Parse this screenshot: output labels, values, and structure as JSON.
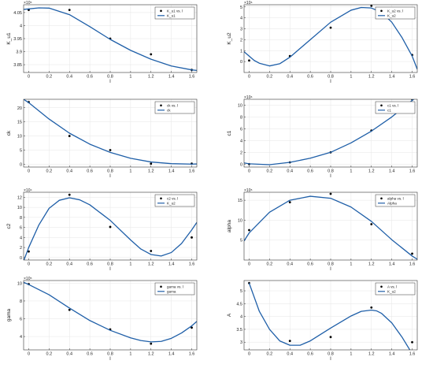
{
  "chart_data": [
    {
      "type": "scatter",
      "xlabel": "l",
      "ylabel": "K_u1",
      "xlim": [
        -0.05,
        1.65
      ],
      "ylim": [
        3.82,
        4.08
      ],
      "y_exponent": "×10⁵",
      "xticks": [
        "0",
        "0.2",
        "0.4",
        "0.6",
        "0.8",
        "1",
        "1.2",
        "1.4",
        "1.6"
      ],
      "yticks": [
        {
          "v": 3.85,
          "label": "3.85"
        },
        {
          "v": 3.9,
          "label": "3.9"
        },
        {
          "v": 3.95,
          "label": "3.95"
        },
        {
          "v": 4.0,
          "label": "4"
        },
        {
          "v": 4.05,
          "label": "4.05"
        }
      ],
      "series": [
        {
          "name": "K_u1 vs. l",
          "kind": "points",
          "x": [
            0,
            0.4,
            0.8,
            1.2,
            1.6
          ],
          "y": [
            4.06,
            4.06,
            3.95,
            3.89,
            3.83
          ]
        },
        {
          "name": "K_u1",
          "kind": "line",
          "x": [
            -0.05,
            0.1,
            0.2,
            0.4,
            0.6,
            0.8,
            1.0,
            1.2,
            1.4,
            1.6,
            1.65
          ],
          "y": [
            4.062,
            4.068,
            4.067,
            4.042,
            3.996,
            3.947,
            3.905,
            3.871,
            3.845,
            3.83,
            3.828
          ]
        }
      ]
    },
    {
      "type": "scatter",
      "xlabel": "l",
      "ylabel": "K_u2",
      "xlim": [
        -0.05,
        1.65
      ],
      "ylim": [
        -1,
        5.2
      ],
      "y_exponent": "×10⁶",
      "xticks": [
        "0",
        "0.2",
        "0.4",
        "0.6",
        "0.8",
        "1",
        "1.2",
        "1.4",
        "1.6"
      ],
      "yticks": [
        {
          "v": 0,
          "label": "0"
        },
        {
          "v": 1,
          "label": "1"
        },
        {
          "v": 2,
          "label": "2"
        },
        {
          "v": 3,
          "label": "3"
        },
        {
          "v": 4,
          "label": "4"
        },
        {
          "v": 5,
          "label": "5"
        }
      ],
      "series": [
        {
          "name": "K_u2 vs. l",
          "kind": "points",
          "x": [
            0,
            0.4,
            0.8,
            1.2,
            1.6
          ],
          "y": [
            0.1,
            0.5,
            3.1,
            5.1,
            0.6
          ]
        },
        {
          "name": "K_u2",
          "kind": "line",
          "x": [
            -0.05,
            0.05,
            0.1,
            0.2,
            0.3,
            0.4,
            0.6,
            0.8,
            1.0,
            1.1,
            1.2,
            1.3,
            1.4,
            1.5,
            1.6,
            1.65
          ],
          "y": [
            0.9,
            0.1,
            -0.15,
            -0.4,
            -0.2,
            0.4,
            2.0,
            3.6,
            4.7,
            4.95,
            4.9,
            4.5,
            3.6,
            2.2,
            0.5,
            -0.7
          ]
        }
      ]
    },
    {
      "type": "scatter",
      "xlabel": "l",
      "ylabel": "ck",
      "xlim": [
        -0.05,
        1.65
      ],
      "ylim": [
        -1,
        23
      ],
      "y_exponent": "",
      "xticks": [
        "0",
        "0.2",
        "0.4",
        "0.6",
        "0.8",
        "1",
        "1.2",
        "1.4",
        "1.6"
      ],
      "yticks": [
        {
          "v": 0,
          "label": "0"
        },
        {
          "v": 5,
          "label": "5"
        },
        {
          "v": 10,
          "label": "10"
        },
        {
          "v": 15,
          "label": "15"
        },
        {
          "v": 20,
          "label": "20"
        }
      ],
      "series": [
        {
          "name": "ck vs. l",
          "kind": "points",
          "x": [
            0,
            0.4,
            0.8,
            1.2,
            1.6
          ],
          "y": [
            22,
            10,
            5,
            0.2,
            0.2
          ]
        },
        {
          "name": "ck",
          "kind": "line",
          "x": [
            -0.05,
            0.0,
            0.2,
            0.4,
            0.6,
            0.8,
            1.0,
            1.2,
            1.4,
            1.6,
            1.65
          ],
          "y": [
            23,
            21.8,
            16,
            11,
            7.1,
            4.2,
            2.1,
            0.8,
            0.2,
            0.05,
            0.1
          ]
        }
      ]
    },
    {
      "type": "scatter",
      "xlabel": "l",
      "ylabel": "c1",
      "xlim": [
        -0.05,
        1.65
      ],
      "ylim": [
        -0.5,
        11
      ],
      "y_exponent": "×10⁶",
      "xticks": [
        "0",
        "0.2",
        "0.4",
        "0.6",
        "0.8",
        "1",
        "1.2",
        "1.4",
        "1.6"
      ],
      "yticks": [
        {
          "v": 0,
          "label": "0"
        },
        {
          "v": 2,
          "label": "2"
        },
        {
          "v": 4,
          "label": "4"
        },
        {
          "v": 6,
          "label": "6"
        },
        {
          "v": 8,
          "label": "8"
        },
        {
          "v": 10,
          "label": "10"
        }
      ],
      "series": [
        {
          "name": "c1 vs. l",
          "kind": "points",
          "x": [
            0,
            0.4,
            0.8,
            1.2,
            1.6
          ],
          "y": [
            0,
            0.3,
            2,
            5.7,
            11
          ]
        },
        {
          "name": "c1",
          "kind": "line",
          "x": [
            -0.05,
            0.0,
            0.2,
            0.4,
            0.6,
            0.8,
            1.0,
            1.2,
            1.4,
            1.6,
            1.65
          ],
          "y": [
            0.2,
            0.05,
            -0.1,
            0.3,
            1.0,
            2.0,
            3.6,
            5.6,
            8.0,
            10.8,
            11.5
          ]
        }
      ]
    },
    {
      "type": "scatter",
      "xlabel": "l",
      "ylabel": "c2",
      "xlim": [
        -0.05,
        1.65
      ],
      "ylim": [
        -0.5,
        13
      ],
      "y_exponent": "×10⁴",
      "xticks": [
        "0",
        "0.2",
        "0.4",
        "0.6",
        "0.8",
        "1",
        "1.2",
        "1.4",
        "1.6"
      ],
      "yticks": [
        {
          "v": 0,
          "label": "0"
        },
        {
          "v": 2,
          "label": "2"
        },
        {
          "v": 4,
          "label": "4"
        },
        {
          "v": 6,
          "label": "6"
        },
        {
          "v": 8,
          "label": "8"
        },
        {
          "v": 10,
          "label": "10"
        },
        {
          "v": 12,
          "label": "12"
        }
      ],
      "series": [
        {
          "name": "c2 vs. l",
          "kind": "points",
          "x": [
            0,
            0.4,
            0.8,
            1.2,
            1.6
          ],
          "y": [
            1.2,
            12.5,
            6.1,
            1.3,
            4
          ]
        },
        {
          "name": "K_u2",
          "kind": "line",
          "x": [
            -0.05,
            0.0,
            0.1,
            0.2,
            0.3,
            0.4,
            0.5,
            0.6,
            0.8,
            1.0,
            1.1,
            1.2,
            1.3,
            1.4,
            1.5,
            1.6,
            1.65
          ],
          "y": [
            -0.7,
            2.0,
            6.5,
            9.8,
            11.4,
            11.9,
            11.5,
            10.5,
            7.4,
            3.5,
            1.7,
            0.6,
            0.3,
            1.0,
            2.8,
            5.5,
            7.0
          ]
        }
      ]
    },
    {
      "type": "scatter",
      "xlabel": "l",
      "ylabel": "alpha",
      "xlim": [
        -0.05,
        1.65
      ],
      "ylim": [
        0,
        17
      ],
      "y_exponent": "×10⁵",
      "xticks": [
        "0",
        "0.2",
        "0.4",
        "0.6",
        "0.8",
        "1",
        "1.2",
        "1.4",
        "1.6"
      ],
      "yticks": [
        {
          "v": 5,
          "label": "5"
        },
        {
          "v": 10,
          "label": "10"
        },
        {
          "v": 15,
          "label": "15"
        }
      ],
      "series": [
        {
          "name": "alpha vs. l",
          "kind": "points",
          "x": [
            0,
            0.4,
            0.8,
            1.2,
            1.6
          ],
          "y": [
            7.5,
            14.5,
            16.6,
            9,
            1.6
          ]
        },
        {
          "name": "Alpha",
          "kind": "line",
          "x": [
            -0.05,
            0.0,
            0.2,
            0.4,
            0.6,
            0.8,
            1.0,
            1.2,
            1.4,
            1.6,
            1.65
          ],
          "y": [
            4.8,
            6.8,
            12.0,
            15.0,
            16.0,
            15.5,
            13.3,
            9.7,
            5.1,
            1.0,
            0.2
          ]
        }
      ]
    },
    {
      "type": "scatter",
      "xlabel": "l",
      "ylabel": "gama",
      "xlim": [
        -0.05,
        1.65
      ],
      "ylim": [
        2.5,
        10.3
      ],
      "y_exponent": "×10⁵",
      "xticks": [
        "0",
        "0.2",
        "0.4",
        "0.6",
        "0.8",
        "1",
        "1.2",
        "1.4",
        "1.6"
      ],
      "yticks": [
        {
          "v": 4,
          "label": "4"
        },
        {
          "v": 6,
          "label": "6"
        },
        {
          "v": 8,
          "label": "8"
        },
        {
          "v": 10,
          "label": "10"
        }
      ],
      "series": [
        {
          "name": "gama vs. l",
          "kind": "points",
          "x": [
            0,
            0.4,
            0.8,
            1.2,
            1.6
          ],
          "y": [
            9.9,
            7,
            4.8,
            3.2,
            5
          ]
        },
        {
          "name": "gama",
          "kind": "line",
          "x": [
            -0.05,
            0.0,
            0.2,
            0.4,
            0.6,
            0.8,
            1.0,
            1.1,
            1.2,
            1.3,
            1.4,
            1.5,
            1.6,
            1.65
          ],
          "y": [
            10.1,
            9.85,
            8.7,
            7.2,
            5.8,
            4.7,
            3.85,
            3.55,
            3.4,
            3.45,
            3.8,
            4.4,
            5.2,
            5.7
          ]
        }
      ]
    },
    {
      "type": "scatter",
      "xlabel": "l",
      "ylabel": "A",
      "xlim": [
        -0.05,
        1.65
      ],
      "ylim": [
        2.7,
        5.4
      ],
      "y_exponent": "",
      "xticks": [
        "0",
        "0.2",
        "0.4",
        "0.6",
        "0.8",
        "1",
        "1.2",
        "1.4",
        "1.6"
      ],
      "yticks": [
        {
          "v": 3,
          "label": "3"
        },
        {
          "v": 3.5,
          "label": "3.5"
        },
        {
          "v": 4,
          "label": "4"
        },
        {
          "v": 4.5,
          "label": "4.5"
        },
        {
          "v": 5,
          "label": "5"
        }
      ],
      "series": [
        {
          "name": "A vs. l",
          "kind": "points",
          "x": [
            0,
            0.4,
            0.8,
            1.2,
            1.6
          ],
          "y": [
            5.3,
            3.05,
            3.2,
            4.35,
            3.0
          ]
        },
        {
          "name": "K_u2",
          "kind": "line",
          "x": [
            0.0,
            0.1,
            0.2,
            0.3,
            0.4,
            0.5,
            0.6,
            0.8,
            1.0,
            1.1,
            1.2,
            1.25,
            1.3,
            1.4,
            1.5,
            1.6,
            1.65
          ],
          "y": [
            5.3,
            4.2,
            3.5,
            3.05,
            2.88,
            2.88,
            3.05,
            3.55,
            4.02,
            4.2,
            4.25,
            4.22,
            4.12,
            3.75,
            3.2,
            2.55,
            2.2
          ]
        }
      ]
    }
  ]
}
